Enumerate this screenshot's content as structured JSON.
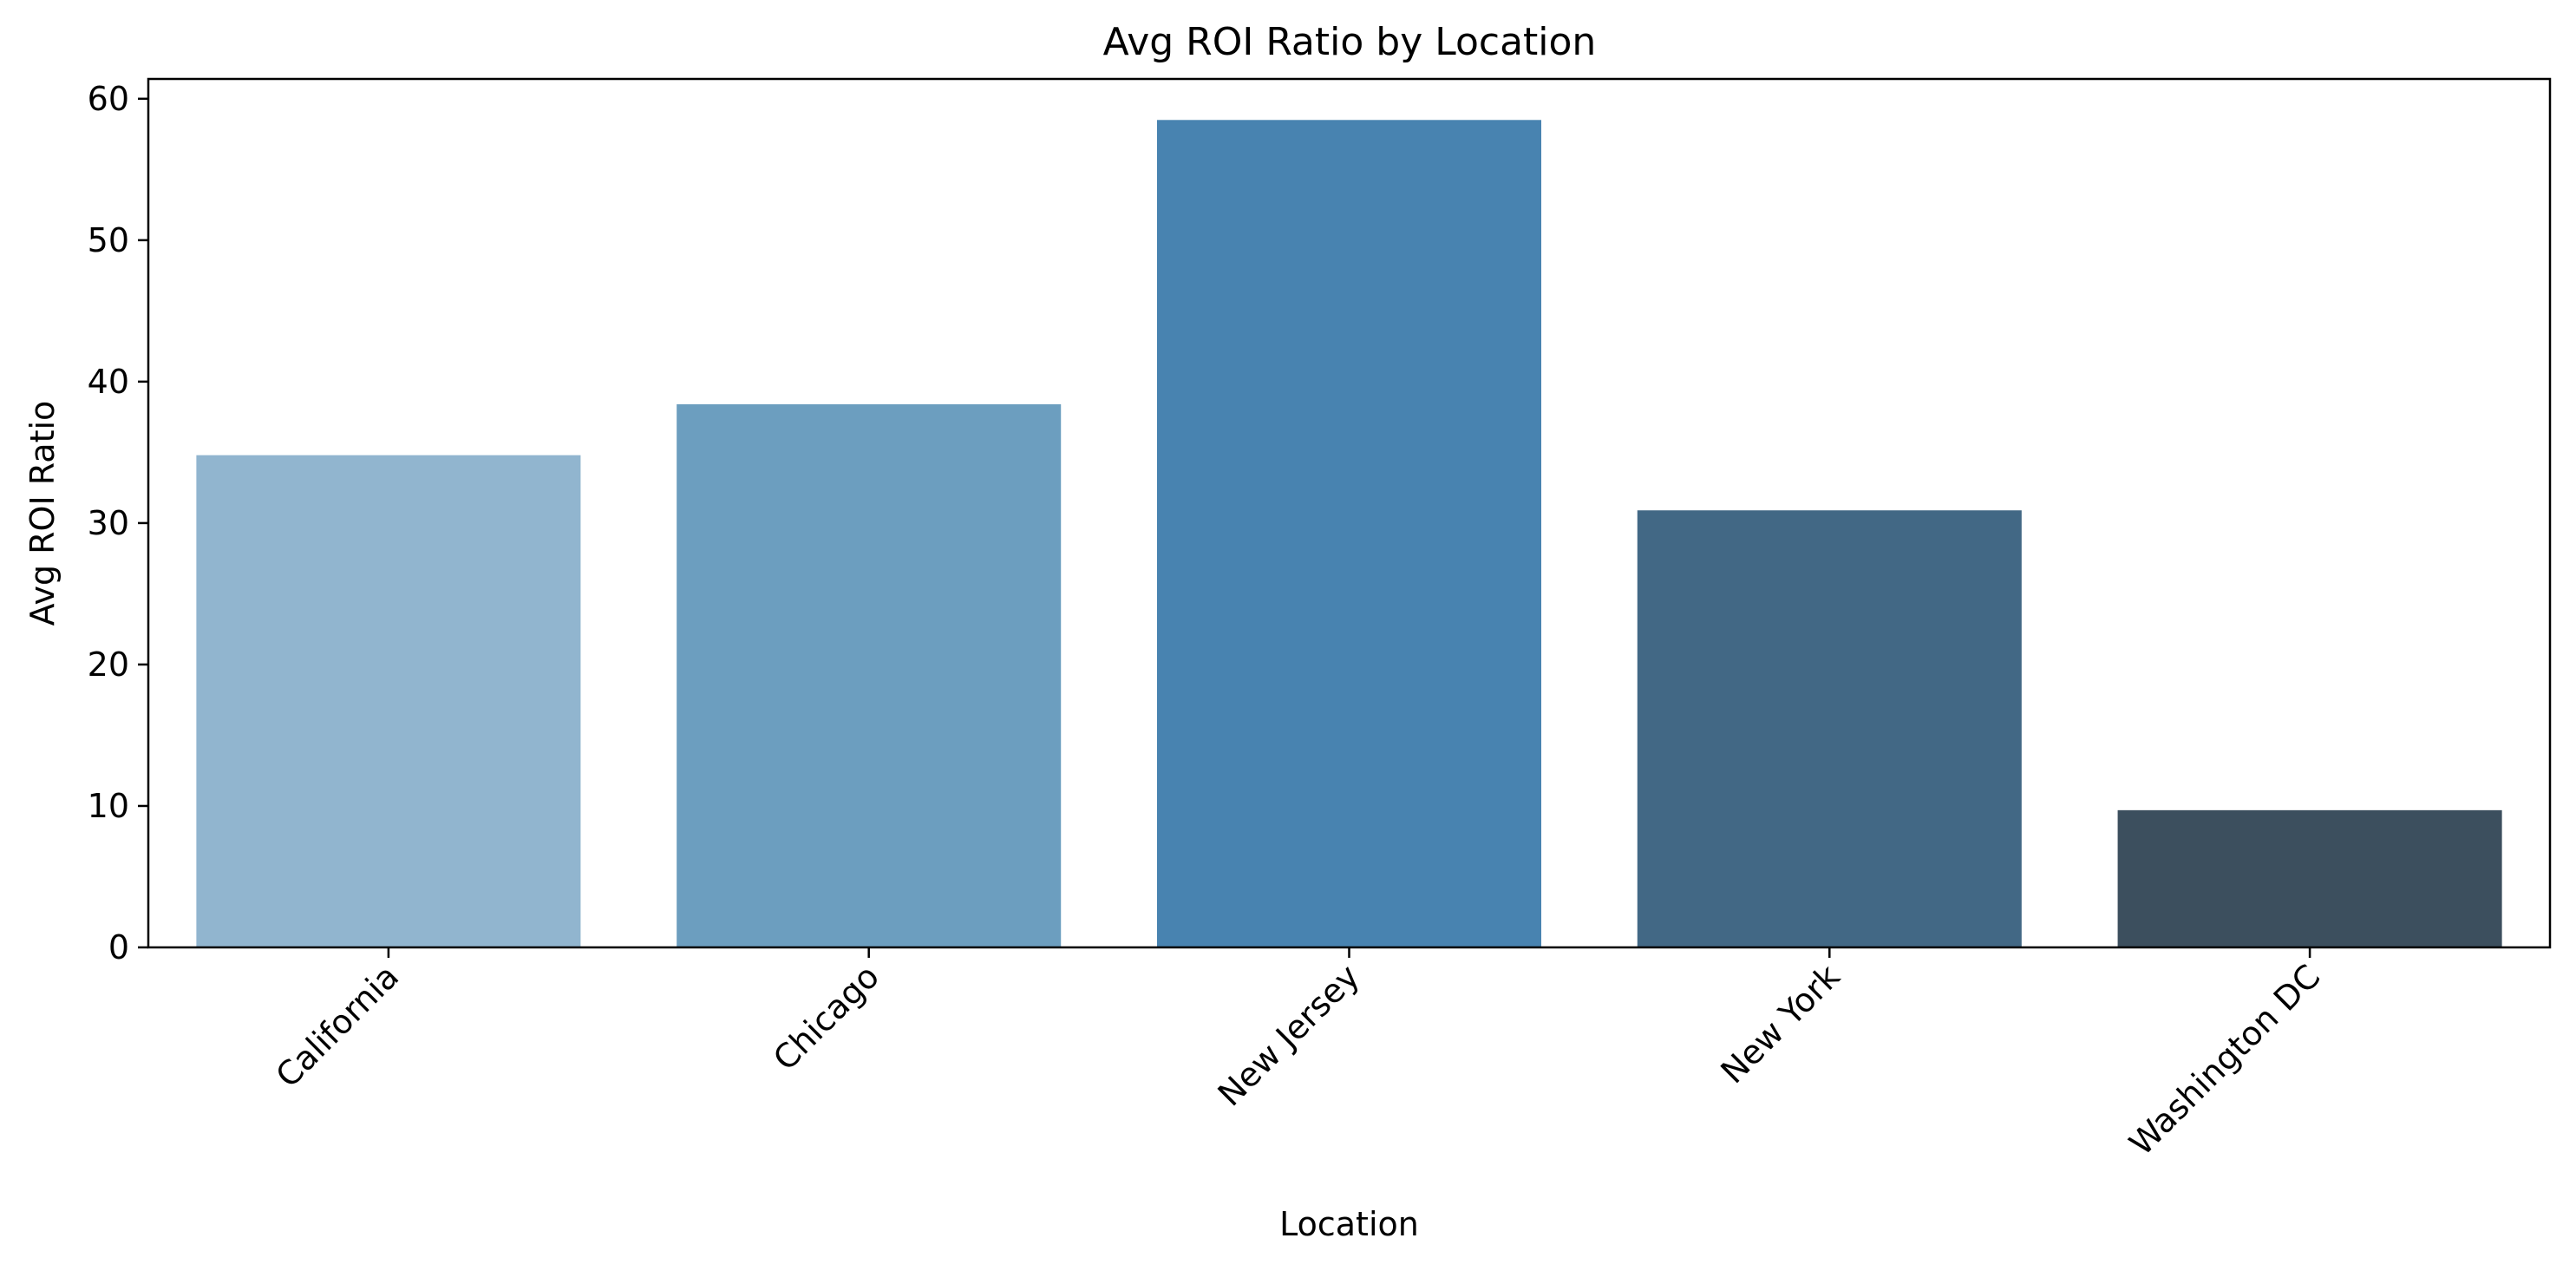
{
  "chart_data": {
    "type": "bar",
    "title": "Avg ROI Ratio by Location",
    "xlabel": "Location",
    "ylabel": "Avg ROI Ratio",
    "categories": [
      "California",
      "Chicago",
      "New Jersey",
      "New York",
      "Washington DC"
    ],
    "values": [
      34.8,
      38.4,
      58.5,
      30.9,
      9.7
    ],
    "colors": [
      "#91b5cf",
      "#6c9ebf",
      "#4883b0",
      "#426885",
      "#3c4f5e"
    ],
    "ylim": [
      0,
      61.4
    ],
    "yticks": [
      0,
      10,
      20,
      30,
      40,
      50,
      60
    ],
    "xtick_rotation": 45,
    "grid": false,
    "legend": null
  }
}
